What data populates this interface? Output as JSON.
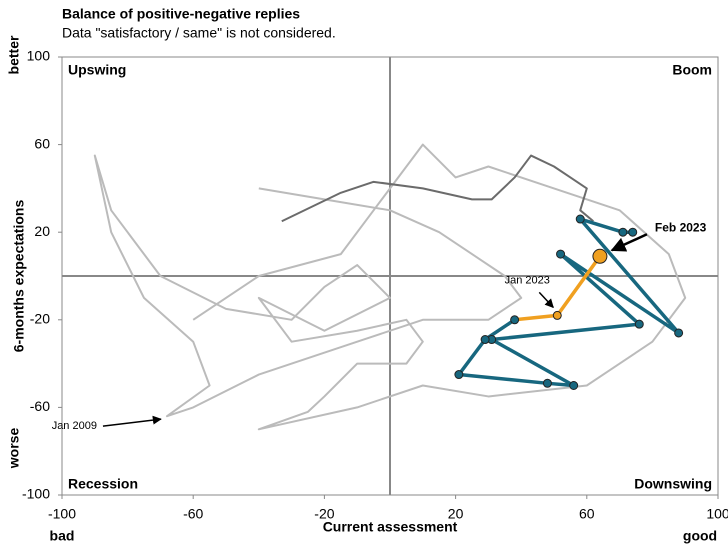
{
  "chart_data": {
    "type": "line",
    "title": "Balance of positive-negative replies",
    "subtitle": "Data \"satisfactory / same\" is not considered.",
    "x_label": "Current assessment",
    "y_label": "6-months expectations",
    "x_low_label": "bad",
    "x_high_label": "good",
    "y_high_label": "better",
    "y_low_label": "worse",
    "quadrant_labels": {
      "upper_left": "Upswing",
      "upper_right": "Boom",
      "lower_left": "Recession",
      "lower_right": "Downswing"
    },
    "xlim": [
      -100,
      100
    ],
    "ylim": [
      -100,
      100
    ],
    "xticks": [
      -100,
      -60,
      -20,
      20,
      60,
      100
    ],
    "yticks": [
      -100,
      -60,
      -20,
      20,
      60,
      100
    ],
    "series": [
      {
        "color": "#bbbbbb",
        "markers": false,
        "x": [
          -40,
          -20,
          0,
          15,
          25,
          35,
          40,
          30,
          10,
          -10,
          -40,
          -60,
          -68,
          -55,
          -60,
          -75,
          -85,
          -90,
          -85,
          -70,
          -50,
          -30,
          -20,
          -10,
          0,
          -20,
          -40,
          -30,
          -10,
          5,
          10,
          5,
          -10,
          -20,
          -25,
          -40,
          -10,
          10,
          30,
          60,
          80,
          90,
          85,
          70,
          50,
          30,
          20,
          10,
          -5,
          -15,
          -40,
          -60
        ],
        "values": [
          40,
          35,
          30,
          20,
          10,
          0,
          -10,
          -20,
          -20,
          -30,
          -45,
          -60,
          -64,
          -50,
          -30,
          -10,
          20,
          55,
          30,
          0,
          -15,
          -20,
          -5,
          5,
          -10,
          -25,
          -10,
          -30,
          -25,
          -20,
          -30,
          -40,
          -40,
          -55,
          -62,
          -70,
          -60,
          -50,
          -55,
          -50,
          -30,
          -10,
          10,
          30,
          40,
          50,
          45,
          60,
          30,
          10,
          0,
          -20
        ]
      },
      {
        "color": "#6b6b6b",
        "markers": false,
        "x": [
          -33,
          -15,
          -5,
          10,
          25,
          31,
          38,
          43,
          50,
          55,
          60,
          58,
          62
        ],
        "values": [
          25,
          38,
          43,
          40,
          35,
          35,
          45,
          55,
          50,
          45,
          40,
          30,
          25
        ]
      },
      {
        "color": "#17677f",
        "markers": true,
        "x": [
          74,
          71,
          58,
          88,
          52,
          76,
          31,
          56,
          48,
          21,
          29,
          38
        ],
        "values": [
          20,
          20,
          26,
          -26,
          10,
          -22,
          -29,
          -50,
          -49,
          -45,
          -29,
          -20
        ]
      },
      {
        "color": "#f0a020",
        "markers": true,
        "x": [
          38,
          51,
          64
        ],
        "values": [
          -20,
          -18,
          9
        ]
      }
    ],
    "annotations": [
      {
        "text": "Feb 2023",
        "x": 64,
        "y": 9,
        "bold": true
      },
      {
        "text": "Jan 2023",
        "x": 51,
        "y": -18,
        "bold": false
      },
      {
        "text": "Jan 2009",
        "x": -68,
        "y": -64,
        "bold": false
      }
    ]
  }
}
